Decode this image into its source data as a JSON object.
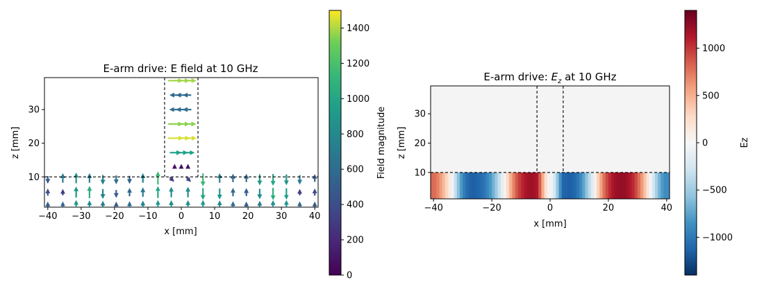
{
  "chart_data": [
    {
      "type": "quiver",
      "title": "E-arm drive: E field at 10 GHz",
      "xlabel": "x [mm]",
      "ylabel": "z [mm]",
      "xlim": [
        -41,
        41
      ],
      "ylim": [
        1,
        39.5
      ],
      "xticks": [
        -40,
        -30,
        -20,
        -10,
        0,
        10,
        20,
        30,
        40
      ],
      "yticks": [
        10,
        20,
        30
      ],
      "boundary": {
        "slab_top_z": 10,
        "arm_x": [
          -5,
          5
        ]
      },
      "colorbar": {
        "label": "Field magnitude",
        "min": 0,
        "max": 1500,
        "ticks": [
          0,
          200,
          400,
          600,
          800,
          1000,
          1200,
          1400
        ],
        "colormap": "viridis"
      },
      "vectors": [
        {
          "x": -2,
          "z": 38.6,
          "u": 1,
          "w": 0,
          "mag": 1380
        },
        {
          "x": 0,
          "z": 38.6,
          "u": 1,
          "w": 0,
          "mag": 1380
        },
        {
          "x": 2,
          "z": 38.6,
          "u": 1,
          "w": 0,
          "mag": 1380
        },
        {
          "x": -2,
          "z": 34.3,
          "u": -1,
          "w": 0,
          "mag": 560
        },
        {
          "x": 0,
          "z": 34.3,
          "u": -1,
          "w": 0,
          "mag": 560
        },
        {
          "x": 2,
          "z": 34.3,
          "u": -1,
          "w": 0,
          "mag": 560
        },
        {
          "x": -2,
          "z": 30,
          "u": -1,
          "w": 0,
          "mag": 600
        },
        {
          "x": 0,
          "z": 30,
          "u": -1,
          "w": 0,
          "mag": 600
        },
        {
          "x": 2,
          "z": 30,
          "u": -1,
          "w": 0,
          "mag": 600
        },
        {
          "x": -2,
          "z": 25.7,
          "u": 1,
          "w": 0,
          "mag": 1350
        },
        {
          "x": 0,
          "z": 25.7,
          "u": 1,
          "w": 0,
          "mag": 1350
        },
        {
          "x": 2,
          "z": 25.7,
          "u": 1,
          "w": 0,
          "mag": 1350
        },
        {
          "x": -2,
          "z": 21.5,
          "u": 1,
          "w": 0,
          "mag": 1450
        },
        {
          "x": 0,
          "z": 21.5,
          "u": 1,
          "w": 0,
          "mag": 1450
        },
        {
          "x": 2,
          "z": 21.5,
          "u": 1,
          "w": 0,
          "mag": 1450
        },
        {
          "x": -2,
          "z": 17.2,
          "u": 1,
          "w": 0,
          "mag": 950
        },
        {
          "x": 0,
          "z": 17.2,
          "u": 1,
          "w": 0,
          "mag": 950
        },
        {
          "x": 2,
          "z": 17.2,
          "u": 1,
          "w": 0,
          "mag": 950
        },
        {
          "x": -2,
          "z": 12.9,
          "u": 0,
          "w": 1,
          "mag": 60
        },
        {
          "x": 0,
          "z": 12.9,
          "u": 0,
          "w": 1,
          "mag": 60
        },
        {
          "x": 2,
          "z": 12.9,
          "u": 0,
          "w": 1,
          "mag": 60
        },
        {
          "x": -40,
          "z": 9.4,
          "u": 0,
          "w": -1,
          "mag": 480
        },
        {
          "x": -35.5,
          "z": 9.4,
          "u": 0,
          "w": 1,
          "mag": 700
        },
        {
          "x": -31.5,
          "z": 9.4,
          "u": 0,
          "w": 1,
          "mag": 850
        },
        {
          "x": -27.5,
          "z": 9.4,
          "u": 0,
          "w": 1,
          "mag": 700
        },
        {
          "x": -23.5,
          "z": 9.4,
          "u": 0,
          "w": -1,
          "mag": 720
        },
        {
          "x": -19.5,
          "z": 9.4,
          "u": 0,
          "w": -1,
          "mag": 620
        },
        {
          "x": -15.5,
          "z": 9.4,
          "u": 0,
          "w": -1,
          "mag": 520
        },
        {
          "x": -11.5,
          "z": 9.4,
          "u": 0,
          "w": 1,
          "mag": 700
        },
        {
          "x": -7,
          "z": 9.4,
          "u": 0,
          "w": 1,
          "mag": 1150
        },
        {
          "x": -3,
          "z": 9.4,
          "u": 0.7,
          "w": -0.7,
          "mag": 300
        },
        {
          "x": 2,
          "z": 9.4,
          "u": 0.7,
          "w": -0.7,
          "mag": 350
        },
        {
          "x": 6.5,
          "z": 9.4,
          "u": 0,
          "w": -1,
          "mag": 1150
        },
        {
          "x": 11.5,
          "z": 9.4,
          "u": 0,
          "w": 1,
          "mag": 700
        },
        {
          "x": 15.5,
          "z": 9.4,
          "u": 0,
          "w": 1,
          "mag": 550
        },
        {
          "x": 19.5,
          "z": 9.4,
          "u": 0,
          "w": 1,
          "mag": 550
        },
        {
          "x": 23.5,
          "z": 9.4,
          "u": 0,
          "w": -1,
          "mag": 900
        },
        {
          "x": 27.5,
          "z": 9.4,
          "u": 0,
          "w": -1,
          "mag": 1000
        },
        {
          "x": 31.5,
          "z": 9.4,
          "u": 0,
          "w": -1,
          "mag": 850
        },
        {
          "x": 35.5,
          "z": 9.4,
          "u": 0,
          "w": -1,
          "mag": 700
        },
        {
          "x": 40,
          "z": 9.4,
          "u": 0,
          "w": 1,
          "mag": 480
        },
        {
          "x": -40,
          "z": 5.2,
          "u": 0,
          "w": 1,
          "mag": 400
        },
        {
          "x": -35.5,
          "z": 5.2,
          "u": 0,
          "w": 1,
          "mag": 300
        },
        {
          "x": -31.5,
          "z": 5.2,
          "u": 0,
          "w": 1,
          "mag": 900
        },
        {
          "x": -27.5,
          "z": 5.2,
          "u": 0,
          "w": 1,
          "mag": 1050
        },
        {
          "x": -23.5,
          "z": 5.2,
          "u": 0,
          "w": -1,
          "mag": 750
        },
        {
          "x": -19.5,
          "z": 5.2,
          "u": 0,
          "w": -1,
          "mag": 500
        },
        {
          "x": -15.5,
          "z": 5.2,
          "u": 0,
          "w": 1,
          "mag": 560
        },
        {
          "x": -11.5,
          "z": 5.2,
          "u": 0,
          "w": 1,
          "mag": 700
        },
        {
          "x": -7,
          "z": 5.2,
          "u": 0,
          "w": 1,
          "mag": 1000
        },
        {
          "x": -3,
          "z": 5.2,
          "u": 0,
          "w": 1,
          "mag": 820
        },
        {
          "x": 2,
          "z": 5.2,
          "u": 0,
          "w": 1,
          "mag": 820
        },
        {
          "x": 6.5,
          "z": 5.2,
          "u": 0,
          "w": -1,
          "mag": 1000
        },
        {
          "x": 11.5,
          "z": 5.2,
          "u": 0,
          "w": -1,
          "mag": 900
        },
        {
          "x": 15.5,
          "z": 5.2,
          "u": 0,
          "w": 1,
          "mag": 560
        },
        {
          "x": 19.5,
          "z": 5.2,
          "u": 0,
          "w": 1,
          "mag": 500
        },
        {
          "x": 23.5,
          "z": 5.2,
          "u": 0,
          "w": -1,
          "mag": 820
        },
        {
          "x": 27.5,
          "z": 5.2,
          "u": 0,
          "w": -1,
          "mag": 1050
        },
        {
          "x": 31.5,
          "z": 5.2,
          "u": 0,
          "w": -1,
          "mag": 950
        },
        {
          "x": 35.5,
          "z": 5.2,
          "u": 0,
          "w": 1,
          "mag": 300
        },
        {
          "x": 40,
          "z": 5.2,
          "u": 0,
          "w": 1,
          "mag": 400
        },
        {
          "x": -40,
          "z": 1.2,
          "u": 0,
          "w": 1,
          "mag": 500
        },
        {
          "x": -35.5,
          "z": 1.2,
          "u": 0,
          "w": 1,
          "mag": 550
        },
        {
          "x": -31.5,
          "z": 1.2,
          "u": 0,
          "w": 1,
          "mag": 900
        },
        {
          "x": -27.5,
          "z": 1.2,
          "u": 0,
          "w": 1,
          "mag": 800
        },
        {
          "x": -23.5,
          "z": 1.2,
          "u": 0,
          "w": 1,
          "mag": 700
        },
        {
          "x": -19.5,
          "z": 1.2,
          "u": 0,
          "w": 1,
          "mag": 500
        },
        {
          "x": -15.5,
          "z": 1.2,
          "u": 0,
          "w": 1,
          "mag": 600
        },
        {
          "x": -11.5,
          "z": 1.2,
          "u": 0,
          "w": 1,
          "mag": 750
        },
        {
          "x": -7,
          "z": 1.2,
          "u": 0,
          "w": 1,
          "mag": 900
        },
        {
          "x": -3,
          "z": 1.2,
          "u": 0,
          "w": 1,
          "mag": 850
        },
        {
          "x": 2,
          "z": 1.2,
          "u": 0,
          "w": 1,
          "mag": 850
        },
        {
          "x": 6.5,
          "z": 1.2,
          "u": 0,
          "w": 1,
          "mag": 900
        },
        {
          "x": 11.5,
          "z": 1.2,
          "u": 0,
          "w": 1,
          "mag": 800
        },
        {
          "x": 15.5,
          "z": 1.2,
          "u": 0,
          "w": 1,
          "mag": 600
        },
        {
          "x": 19.5,
          "z": 1.2,
          "u": 0,
          "w": 1,
          "mag": 500
        },
        {
          "x": 23.5,
          "z": 1.2,
          "u": 0,
          "w": 1,
          "mag": 700
        },
        {
          "x": 27.5,
          "z": 1.2,
          "u": 0,
          "w": 1,
          "mag": 850
        },
        {
          "x": 31.5,
          "z": 1.2,
          "u": 0,
          "w": 1,
          "mag": 900
        },
        {
          "x": 35.5,
          "z": 1.2,
          "u": 0,
          "w": 1,
          "mag": 550
        },
        {
          "x": 40,
          "z": 1.2,
          "u": 0,
          "w": 1,
          "mag": 500
        }
      ]
    },
    {
      "type": "heatmap",
      "title_prefix": "E-arm drive: ",
      "title_var": "E",
      "title_sub": "z",
      "title_suffix": " at 10 GHz",
      "xlabel": "x [mm]",
      "ylabel": "z [mm]",
      "xlim": [
        -41,
        41
      ],
      "ylim": [
        1,
        39.5
      ],
      "xticks": [
        -40,
        -20,
        0,
        20,
        40
      ],
      "yticks": [
        10,
        20,
        30
      ],
      "boundary": {
        "slab_top_z": 10,
        "arm_x": [
          -4.5,
          4.5
        ]
      },
      "colorbar": {
        "label": "Ez",
        "min": -1400,
        "max": 1400,
        "ticks": [
          -1000,
          -500,
          0,
          500,
          1000
        ],
        "colormap": "RdBu_r"
      },
      "slab_ez_profile": {
        "x": [
          -41,
          -40,
          -39,
          -38,
          -37,
          -36,
          -35,
          -34,
          -33,
          -32,
          -31,
          -30,
          -29,
          -28,
          -27,
          -26,
          -25,
          -24,
          -23,
          -22,
          -21,
          -20,
          -19,
          -18,
          -17,
          -16,
          -15,
          -14,
          -13,
          -12,
          -11,
          -10,
          -9,
          -8,
          -7,
          -6,
          -5,
          -4,
          -3,
          -2,
          -1,
          0,
          1,
          2,
          3,
          4,
          5,
          6,
          7,
          8,
          9,
          10,
          11,
          12,
          13,
          14,
          15,
          16,
          17,
          18,
          19,
          20,
          21,
          22,
          23,
          24,
          25,
          26,
          27,
          28,
          29,
          30,
          31,
          32,
          33,
          34,
          35,
          36,
          37,
          38,
          39,
          40,
          41
        ],
        "ez": [
          800,
          780,
          700,
          590,
          450,
          300,
          140,
          -60,
          -330,
          -580,
          -800,
          -970,
          -1080,
          -1130,
          -1150,
          -1140,
          -1110,
          -1080,
          -1020,
          -930,
          -820,
          -680,
          -520,
          -340,
          -150,
          60,
          290,
          510,
          700,
          860,
          980,
          1070,
          1140,
          1180,
          1200,
          1180,
          1130,
          860,
          520,
          230,
          60,
          -70,
          -250,
          -540,
          -860,
          -1120,
          -1130,
          -1150,
          -1140,
          -1100,
          -1020,
          -900,
          -750,
          -570,
          -380,
          -170,
          80,
          330,
          570,
          770,
          930,
          1050,
          1140,
          1200,
          1220,
          1230,
          1220,
          1190,
          1130,
          1050,
          930,
          780,
          610,
          410,
          190,
          -40,
          -260,
          -470,
          -660,
          -800,
          -880,
          -880,
          -860
        ]
      }
    }
  ]
}
